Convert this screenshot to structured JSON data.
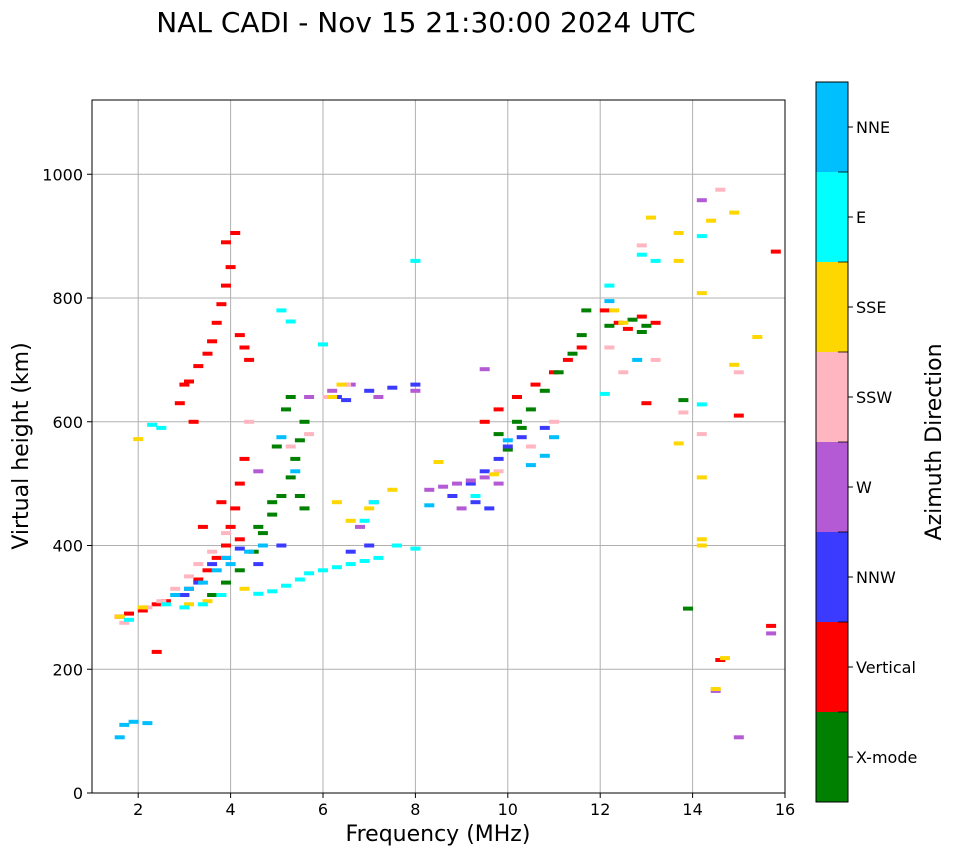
{
  "chart_data": {
    "type": "scatter",
    "title": "NAL CADI - Nov 15 21:30:00 2024 UTC",
    "xlabel": "Frequency (MHz)",
    "ylabel": "Virtual height (km)",
    "xlim": [
      1,
      16
    ],
    "ylim": [
      0,
      1120
    ],
    "xticks": [
      2,
      4,
      6,
      8,
      10,
      12,
      14,
      16
    ],
    "yticks": [
      0,
      200,
      400,
      600,
      800,
      1000
    ],
    "grid": true,
    "colorbar": {
      "label": "Azimuth Direction",
      "categories": [
        {
          "name": "X-mode",
          "color": "#008000"
        },
        {
          "name": "Vertical",
          "color": "#ff0000"
        },
        {
          "name": "NNW",
          "color": "#3b3bff"
        },
        {
          "name": "W",
          "color": "#b35ad4"
        },
        {
          "name": "SSW",
          "color": "#ffb6c1"
        },
        {
          "name": "SSE",
          "color": "#ffd700"
        },
        {
          "name": "E",
          "color": "#00ffff"
        },
        {
          "name": "NNE",
          "color": "#00bfff"
        }
      ]
    },
    "series": [
      {
        "name": "Vertical",
        "points": [
          [
            1.6,
            285
          ],
          [
            1.8,
            290
          ],
          [
            2.1,
            295
          ],
          [
            2.4,
            305
          ],
          [
            2.6,
            310
          ],
          [
            2.9,
            320
          ],
          [
            3.1,
            330
          ],
          [
            3.3,
            345
          ],
          [
            3.5,
            360
          ],
          [
            3.7,
            380
          ],
          [
            3.9,
            400
          ],
          [
            4.0,
            430
          ],
          [
            4.1,
            460
          ],
          [
            4.2,
            500
          ],
          [
            4.3,
            540
          ],
          [
            3.0,
            660
          ],
          [
            3.1,
            665
          ],
          [
            3.3,
            690
          ],
          [
            3.5,
            710
          ],
          [
            3.6,
            730
          ],
          [
            3.7,
            760
          ],
          [
            3.8,
            790
          ],
          [
            3.9,
            820
          ],
          [
            4.0,
            850
          ],
          [
            3.9,
            890
          ],
          [
            4.1,
            905
          ],
          [
            4.2,
            740
          ],
          [
            4.3,
            720
          ],
          [
            4.4,
            700
          ],
          [
            9.5,
            600
          ],
          [
            9.8,
            620
          ],
          [
            10.2,
            640
          ],
          [
            10.6,
            660
          ],
          [
            11.0,
            680
          ],
          [
            11.3,
            700
          ],
          [
            11.6,
            720
          ],
          [
            12.1,
            780
          ],
          [
            12.4,
            760
          ],
          [
            12.6,
            750
          ],
          [
            12.9,
            770
          ],
          [
            13.2,
            760
          ],
          [
            13.0,
            630
          ],
          [
            15.0,
            610
          ],
          [
            15.8,
            875
          ],
          [
            15.7,
            270
          ],
          [
            14.6,
            215
          ],
          [
            2.4,
            228
          ],
          [
            3.4,
            430
          ],
          [
            3.8,
            470
          ],
          [
            4.2,
            410
          ],
          [
            2.9,
            630
          ],
          [
            3.2,
            600
          ]
        ]
      },
      {
        "name": "X-mode",
        "points": [
          [
            3.6,
            320
          ],
          [
            3.9,
            340
          ],
          [
            4.2,
            360
          ],
          [
            4.5,
            390
          ],
          [
            4.7,
            420
          ],
          [
            4.9,
            450
          ],
          [
            5.1,
            480
          ],
          [
            5.3,
            510
          ],
          [
            5.4,
            540
          ],
          [
            5.5,
            570
          ],
          [
            5.6,
            600
          ],
          [
            5.2,
            620
          ],
          [
            4.9,
            470
          ],
          [
            4.6,
            430
          ],
          [
            5.0,
            560
          ],
          [
            5.5,
            480
          ],
          [
            9.8,
            580
          ],
          [
            10.2,
            600
          ],
          [
            10.5,
            620
          ],
          [
            10.8,
            650
          ],
          [
            11.1,
            680
          ],
          [
            11.4,
            710
          ],
          [
            11.6,
            740
          ],
          [
            11.7,
            780
          ],
          [
            12.2,
            755
          ],
          [
            12.7,
            765
          ],
          [
            12.9,
            745
          ],
          [
            13.0,
            755
          ],
          [
            13.8,
            635
          ],
          [
            13.9,
            298
          ],
          [
            5.3,
            640
          ],
          [
            5.6,
            460
          ],
          [
            10.0,
            555
          ],
          [
            10.3,
            590
          ]
        ]
      },
      {
        "name": "NNW",
        "points": [
          [
            3.0,
            320
          ],
          [
            3.3,
            340
          ],
          [
            3.6,
            370
          ],
          [
            3.9,
            380
          ],
          [
            4.2,
            395
          ],
          [
            4.6,
            370
          ],
          [
            5.1,
            400
          ],
          [
            6.3,
            640
          ],
          [
            6.5,
            635
          ],
          [
            7.0,
            650
          ],
          [
            7.5,
            655
          ],
          [
            8.0,
            660
          ],
          [
            6.6,
            390
          ],
          [
            7.0,
            400
          ],
          [
            8.8,
            480
          ],
          [
            9.2,
            500
          ],
          [
            9.5,
            520
          ],
          [
            9.8,
            540
          ],
          [
            10.0,
            560
          ],
          [
            9.3,
            470
          ],
          [
            9.6,
            460
          ],
          [
            10.3,
            575
          ],
          [
            10.8,
            590
          ]
        ]
      },
      {
        "name": "W",
        "points": [
          [
            5.7,
            640
          ],
          [
            6.2,
            650
          ],
          [
            6.6,
            660
          ],
          [
            7.2,
            640
          ],
          [
            8.0,
            650
          ],
          [
            8.3,
            490
          ],
          [
            8.6,
            495
          ],
          [
            8.9,
            500
          ],
          [
            9.2,
            505
          ],
          [
            9.5,
            510
          ],
          [
            9.8,
            500
          ],
          [
            9.5,
            685
          ],
          [
            6.8,
            430
          ],
          [
            7.1,
            470
          ],
          [
            4.6,
            520
          ],
          [
            14.5,
            165
          ],
          [
            15.0,
            90
          ],
          [
            15.7,
            258
          ],
          [
            14.2,
            958
          ],
          [
            9.0,
            460
          ]
        ]
      },
      {
        "name": "SSW",
        "points": [
          [
            1.7,
            275
          ],
          [
            2.2,
            300
          ],
          [
            2.5,
            310
          ],
          [
            2.8,
            330
          ],
          [
            3.1,
            350
          ],
          [
            3.3,
            370
          ],
          [
            3.6,
            390
          ],
          [
            3.9,
            420
          ],
          [
            5.3,
            560
          ],
          [
            5.7,
            580
          ],
          [
            6.1,
            640
          ],
          [
            6.5,
            660
          ],
          [
            9.8,
            520
          ],
          [
            10.5,
            560
          ],
          [
            11.0,
            600
          ],
          [
            12.2,
            720
          ],
          [
            12.5,
            680
          ],
          [
            12.9,
            885
          ],
          [
            13.2,
            700
          ],
          [
            13.8,
            615
          ],
          [
            14.2,
            580
          ],
          [
            14.6,
            975
          ],
          [
            15.0,
            680
          ],
          [
            4.4,
            600
          ]
        ]
      },
      {
        "name": "SSE",
        "points": [
          [
            1.6,
            285
          ],
          [
            2.1,
            300
          ],
          [
            3.1,
            305
          ],
          [
            3.5,
            310
          ],
          [
            3.8,
            320
          ],
          [
            4.3,
            330
          ],
          [
            6.2,
            640
          ],
          [
            6.4,
            660
          ],
          [
            6.3,
            470
          ],
          [
            6.6,
            440
          ],
          [
            7.0,
            460
          ],
          [
            7.5,
            490
          ],
          [
            8.5,
            535
          ],
          [
            9.7,
            515
          ],
          [
            12.3,
            780
          ],
          [
            12.5,
            760
          ],
          [
            13.1,
            930
          ],
          [
            13.7,
            905
          ],
          [
            13.7,
            565
          ],
          [
            13.7,
            860
          ],
          [
            14.2,
            808
          ],
          [
            14.2,
            510
          ],
          [
            14.2,
            410
          ],
          [
            14.2,
            400
          ],
          [
            14.4,
            925
          ],
          [
            14.9,
            938
          ],
          [
            14.9,
            692
          ],
          [
            15.4,
            737
          ],
          [
            14.7,
            218
          ],
          [
            14.5,
            168
          ],
          [
            2.0,
            572
          ]
        ]
      },
      {
        "name": "E",
        "points": [
          [
            1.8,
            280
          ],
          [
            2.6,
            305
          ],
          [
            3.0,
            300
          ],
          [
            3.4,
            305
          ],
          [
            3.8,
            320
          ],
          [
            4.6,
            322
          ],
          [
            4.9,
            326
          ],
          [
            5.2,
            335
          ],
          [
            5.5,
            345
          ],
          [
            5.7,
            355
          ],
          [
            6.0,
            360
          ],
          [
            6.3,
            365
          ],
          [
            6.6,
            370
          ],
          [
            6.9,
            375
          ],
          [
            7.2,
            380
          ],
          [
            6.9,
            440
          ],
          [
            7.1,
            470
          ],
          [
            7.6,
            400
          ],
          [
            8.0,
            395
          ],
          [
            8.0,
            860
          ],
          [
            9.3,
            480
          ],
          [
            12.2,
            820
          ],
          [
            12.9,
            870
          ],
          [
            13.2,
            860
          ],
          [
            14.2,
            900
          ],
          [
            14.2,
            628
          ],
          [
            12.1,
            645
          ],
          [
            6.0,
            725
          ],
          [
            5.3,
            762
          ],
          [
            5.1,
            780
          ],
          [
            2.3,
            595
          ],
          [
            2.5,
            590
          ]
        ]
      },
      {
        "name": "NNE",
        "points": [
          [
            1.6,
            90
          ],
          [
            1.7,
            110
          ],
          [
            1.9,
            115
          ],
          [
            2.2,
            113
          ],
          [
            2.8,
            320
          ],
          [
            3.1,
            330
          ],
          [
            3.4,
            340
          ],
          [
            3.7,
            360
          ],
          [
            3.9,
            380
          ],
          [
            4.0,
            370
          ],
          [
            4.4,
            390
          ],
          [
            4.7,
            400
          ],
          [
            5.4,
            520
          ],
          [
            5.1,
            575
          ],
          [
            8.3,
            465
          ],
          [
            10.0,
            570
          ],
          [
            10.5,
            530
          ],
          [
            10.8,
            545
          ],
          [
            11.0,
            575
          ],
          [
            12.2,
            795
          ],
          [
            12.8,
            700
          ]
        ]
      }
    ]
  }
}
